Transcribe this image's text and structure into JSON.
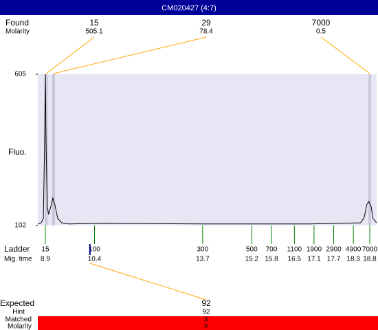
{
  "title": "CM020427 (4:7)",
  "chart_data": {
    "type": "electropherogram",
    "y_label": "Fluo.",
    "xlim": [
      8.67,
      19.01
    ],
    "ylim": [
      102,
      605
    ],
    "yticks": [
      102,
      605
    ],
    "background": "#e6e6f5",
    "trace": {
      "color": "#000000",
      "x": [
        8.67,
        8.77,
        8.84,
        8.88,
        8.9,
        8.92,
        8.96,
        9.0,
        9.07,
        9.13,
        9.19,
        9.28,
        9.4,
        9.61,
        10.66,
        13.8,
        16.95,
        18.52,
        18.63,
        18.71,
        18.77,
        18.84,
        18.9,
        19.01
      ],
      "y": [
        107,
        111,
        125,
        395,
        605,
        395,
        166,
        139,
        166,
        193,
        171,
        125,
        111,
        107,
        109,
        107,
        107,
        111,
        129,
        171,
        182,
        166,
        125,
        111
      ]
    },
    "found": {
      "label": "Found",
      "molarity_label": "Molarity",
      "sizes": [
        15,
        29,
        7000
      ],
      "molarity": [
        505.1,
        78.4,
        0.5
      ],
      "times": [
        8.93,
        9.15,
        18.8
      ],
      "color": "#ffa500",
      "band_color": "#c8c8da"
    },
    "ladder": {
      "label": "Ladder",
      "time_label": "Mig. time",
      "sizes": [
        15,
        100,
        300,
        500,
        700,
        1100,
        1900,
        2900,
        4900,
        7000
      ],
      "times": [
        8.9,
        10.4,
        13.7,
        15.2,
        15.8,
        16.5,
        17.1,
        17.7,
        18.3,
        18.8
      ],
      "color": "#008000"
    },
    "expected": {
      "label": "Expected",
      "hint_label": "Hint",
      "matched_label": "Matched",
      "molarity_label": "Molarity",
      "size": 92,
      "hint": 92,
      "matched": "X",
      "molarity": "X",
      "time": 10.26,
      "color": "#000080",
      "link_color": "#ffa500",
      "bar_color": "#ff0000"
    }
  }
}
